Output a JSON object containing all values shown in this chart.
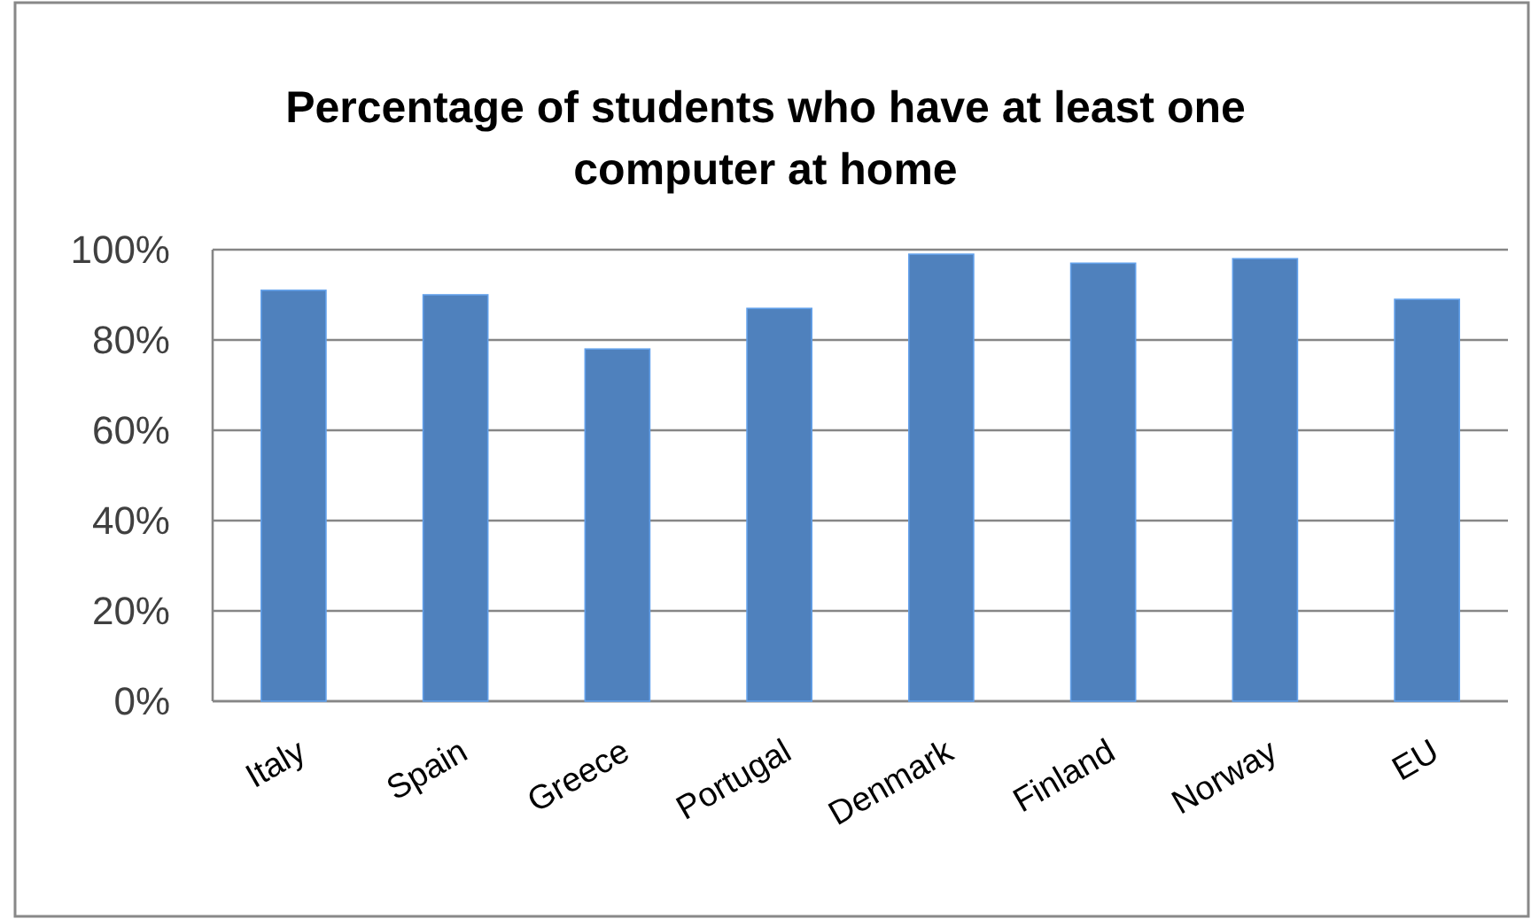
{
  "chart_data": {
    "type": "bar",
    "title": "Percentage of students who have at least one computer at home",
    "categories": [
      "Italy",
      "Spain",
      "Greece",
      "Portugal",
      "Denmark",
      "Finland",
      "Norway",
      "EU"
    ],
    "values": [
      91,
      90,
      78,
      87,
      99,
      97,
      98,
      89
    ],
    "color": "#4f81bd",
    "ylim": [
      0,
      100
    ],
    "yticks": [
      {
        "value": 0,
        "label": "0%"
      },
      {
        "value": 20,
        "label": "20%"
      },
      {
        "value": 40,
        "label": "40%"
      },
      {
        "value": 60,
        "label": "60%"
      },
      {
        "value": 80,
        "label": "80%"
      },
      {
        "value": 100,
        "label": "100%"
      }
    ],
    "grid": "y"
  }
}
